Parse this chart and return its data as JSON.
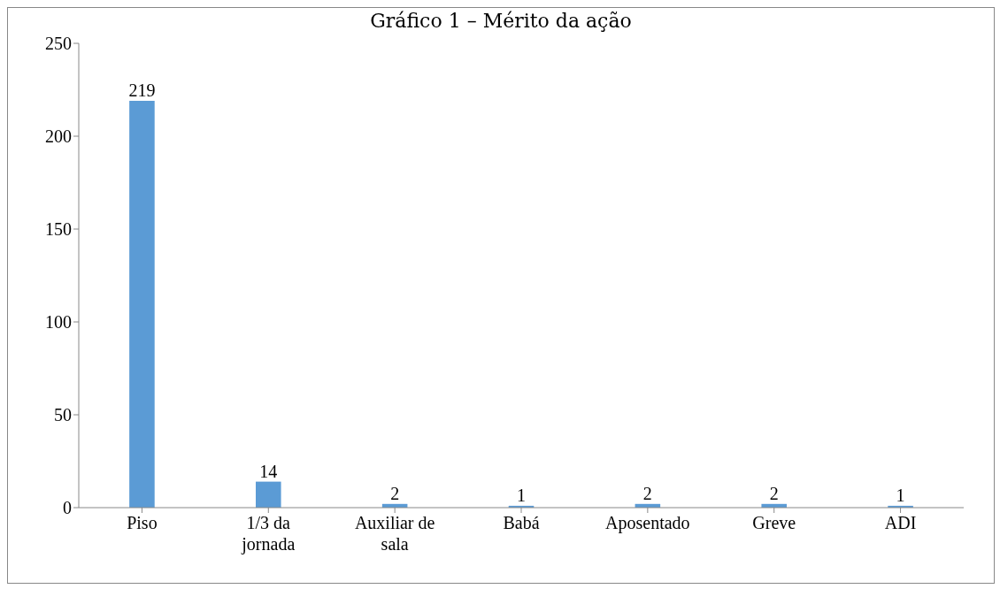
{
  "chart_data": {
    "type": "bar",
    "title": "Gráfico 1 – Mérito da ação",
    "categories": [
      "Piso",
      "1/3 da jornada",
      "Auxiliar de sala",
      "Babá",
      "Aposentado",
      "Greve",
      "ADI"
    ],
    "values": [
      219,
      14,
      2,
      1,
      2,
      2,
      1
    ],
    "color": "#5b9bd5",
    "ylim": [
      0,
      250
    ],
    "yticks": [
      0,
      50,
      100,
      150,
      200,
      250
    ],
    "grid": false,
    "data_labels": true
  }
}
